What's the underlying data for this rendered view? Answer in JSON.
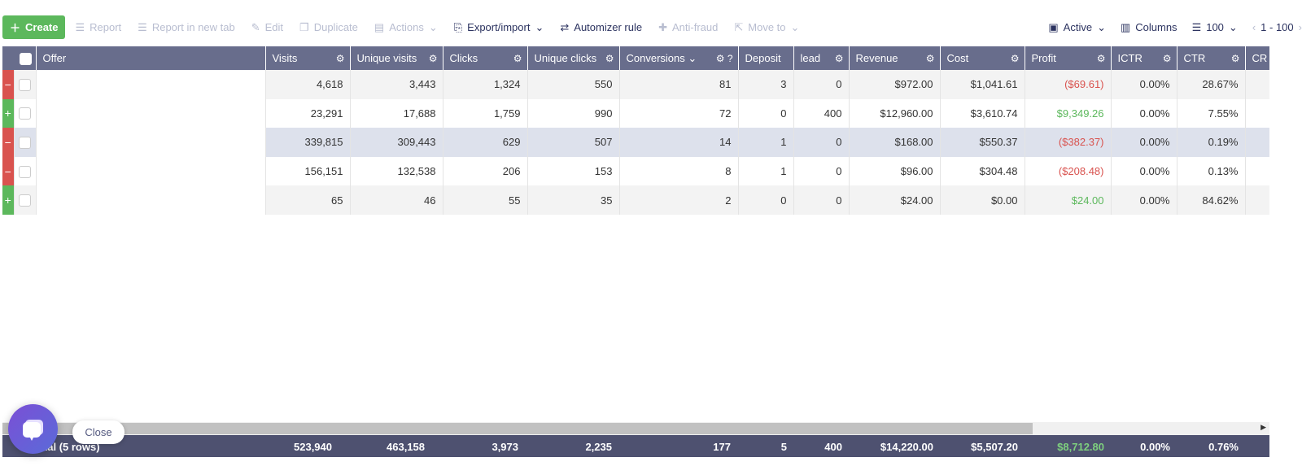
{
  "toolbar": {
    "create": "Create",
    "report": "Report",
    "report_new_tab": "Report in new tab",
    "edit": "Edit",
    "duplicate": "Duplicate",
    "actions": "Actions",
    "export_import": "Export/import",
    "automizer": "Automizer rule",
    "anti_fraud": "Anti-fraud",
    "move_to": "Move to",
    "active": "Active",
    "columns": "Columns",
    "per_page": "100",
    "range": "1 - 100"
  },
  "columns": [
    "Offer",
    "Visits",
    "Unique visits",
    "Clicks",
    "Unique clicks",
    "Conversions",
    "Deposit",
    "lead",
    "Revenue",
    "Cost",
    "Profit",
    "ICTR",
    "CTR",
    "CR"
  ],
  "rows": [
    {
      "exp": "−",
      "visits": "4,618",
      "uvisits": "3,443",
      "clicks": "1,324",
      "uclicks": "550",
      "conv": "81",
      "deposit": "3",
      "lead": "0",
      "revenue": "$972.00",
      "cost": "$1,041.61",
      "profit": "($69.61)",
      "ictr": "0.00%",
      "ctr": "28.67%"
    },
    {
      "exp": "+",
      "visits": "23,291",
      "uvisits": "17,688",
      "clicks": "1,759",
      "uclicks": "990",
      "conv": "72",
      "deposit": "0",
      "lead": "400",
      "revenue": "$12,960.00",
      "cost": "$3,610.74",
      "profit": "$9,349.26",
      "ictr": "0.00%",
      "ctr": "7.55%"
    },
    {
      "exp": "−",
      "visits": "339,815",
      "uvisits": "309,443",
      "clicks": "629",
      "uclicks": "507",
      "conv": "14",
      "deposit": "1",
      "lead": "0",
      "revenue": "$168.00",
      "cost": "$550.37",
      "profit": "($382.37)",
      "ictr": "0.00%",
      "ctr": "0.19%"
    },
    {
      "exp": "−",
      "visits": "156,151",
      "uvisits": "132,538",
      "clicks": "206",
      "uclicks": "153",
      "conv": "8",
      "deposit": "1",
      "lead": "0",
      "revenue": "$96.00",
      "cost": "$304.48",
      "profit": "($208.48)",
      "ictr": "0.00%",
      "ctr": "0.13%"
    },
    {
      "exp": "+",
      "visits": "65",
      "uvisits": "46",
      "clicks": "55",
      "uclicks": "35",
      "conv": "2",
      "deposit": "0",
      "lead": "0",
      "revenue": "$24.00",
      "cost": "$0.00",
      "profit": "$24.00",
      "ictr": "0.00%",
      "ctr": "84.62%"
    }
  ],
  "totals": {
    "label": "Total (5 rows)",
    "visits": "523,940",
    "uvisits": "463,158",
    "clicks": "3,973",
    "uclicks": "2,235",
    "conv": "177",
    "deposit": "5",
    "lead": "400",
    "revenue": "$14,220.00",
    "cost": "$5,507.20",
    "profit": "$8,712.80",
    "ictr": "0.00%",
    "ctr": "0.76%"
  },
  "chat": {
    "close": "Close"
  },
  "colors": {
    "create": "#5cb85c",
    "header": "#686d8c",
    "footer": "#4e5170",
    "negative": "#d9534f",
    "positive": "#5cb85c"
  }
}
